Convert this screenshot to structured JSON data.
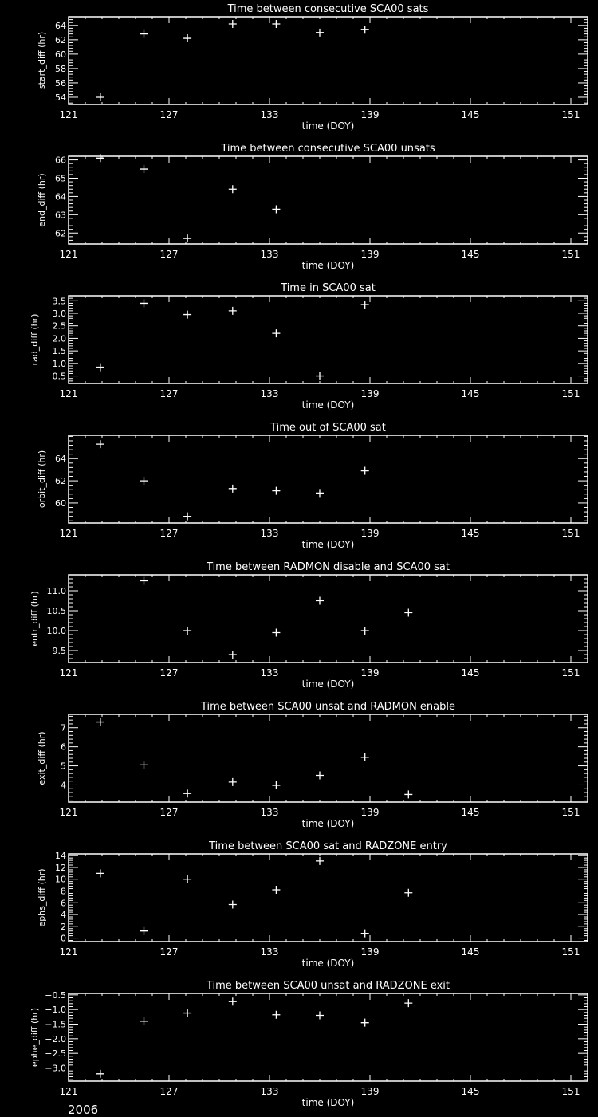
{
  "year_label": "2006",
  "colors": {
    "background": "#000000",
    "foreground": "#ffffff"
  },
  "chart_data": [
    {
      "type": "scatter",
      "title": "Time between consecutive SCA00 sats",
      "xlabel": "time (DOY)",
      "ylabel": "start_diff (hr)",
      "xlim": [
        121,
        152
      ],
      "xticks": [
        121,
        127,
        133,
        139,
        145,
        151
      ],
      "ylim": [
        53,
        65.2
      ],
      "yticks": [
        54,
        56,
        58,
        60,
        62,
        64
      ],
      "x": [
        122.9,
        125.5,
        128.1,
        130.8,
        133.4,
        136.0,
        138.7
      ],
      "y": [
        54.0,
        62.8,
        62.2,
        64.2,
        64.2,
        63.0,
        63.4
      ]
    },
    {
      "type": "scatter",
      "title": "Time between consecutive SCA00 unsats",
      "xlabel": "time (DOY)",
      "ylabel": "end_diff (hr)",
      "xlim": [
        121,
        152
      ],
      "xticks": [
        121,
        127,
        133,
        139,
        145,
        151
      ],
      "ylim": [
        61.4,
        66.2
      ],
      "yticks": [
        62,
        63,
        64,
        65,
        66
      ],
      "x": [
        122.9,
        125.5,
        128.1,
        130.8,
        133.4
      ],
      "y": [
        66.1,
        65.5,
        61.7,
        64.4,
        63.3
      ]
    },
    {
      "type": "scatter",
      "title": "Time in SCA00 sat",
      "xlabel": "time (DOY)",
      "ylabel": "rad_diff (hr)",
      "xlim": [
        121,
        152
      ],
      "xticks": [
        121,
        127,
        133,
        139,
        145,
        151
      ],
      "ylim": [
        0.2,
        3.7
      ],
      "yticks": [
        0.5,
        1.0,
        1.5,
        2.0,
        2.5,
        3.0,
        3.5
      ],
      "x": [
        122.9,
        125.5,
        128.1,
        130.8,
        133.4,
        136.0,
        138.7
      ],
      "y": [
        0.85,
        3.4,
        2.95,
        3.1,
        2.2,
        0.5,
        3.35
      ]
    },
    {
      "type": "scatter",
      "title": "Time out of SCA00 sat",
      "xlabel": "time (DOY)",
      "ylabel": "orbit_diff (hr)",
      "xlim": [
        121,
        152
      ],
      "xticks": [
        121,
        127,
        133,
        139,
        145,
        151
      ],
      "ylim": [
        58.2,
        66.1
      ],
      "yticks": [
        60,
        62,
        64
      ],
      "x": [
        122.9,
        125.5,
        128.1,
        130.8,
        133.4,
        136.0,
        138.7
      ],
      "y": [
        65.3,
        62.0,
        58.8,
        61.3,
        61.1,
        60.9,
        62.9
      ]
    },
    {
      "type": "scatter",
      "title": "Time between RADMON disable and SCA00 sat",
      "xlabel": "time (DOY)",
      "ylabel": "entr_diff (hr)",
      "xlim": [
        121,
        152
      ],
      "xticks": [
        121,
        127,
        133,
        139,
        145,
        151
      ],
      "ylim": [
        9.2,
        11.4
      ],
      "yticks": [
        9.5,
        10.0,
        10.5,
        11.0
      ],
      "x": [
        125.5,
        128.1,
        130.8,
        133.4,
        136.0,
        138.7,
        141.3
      ],
      "y": [
        11.25,
        10.0,
        9.4,
        9.95,
        10.75,
        10.0,
        10.45
      ]
    },
    {
      "type": "scatter",
      "title": "Time between SCA00 unsat and RADMON enable",
      "xlabel": "time (DOY)",
      "ylabel": "exit_diff (hr)",
      "xlim": [
        121,
        152
      ],
      "xticks": [
        121,
        127,
        133,
        139,
        145,
        151
      ],
      "ylim": [
        3.1,
        7.7
      ],
      "yticks": [
        4,
        5,
        6,
        7
      ],
      "x": [
        122.9,
        125.5,
        128.1,
        130.8,
        133.4,
        136.0,
        138.7,
        141.3
      ],
      "y": [
        7.3,
        5.05,
        3.55,
        4.15,
        3.98,
        4.5,
        5.45,
        3.5
      ]
    },
    {
      "type": "scatter",
      "title": "Time between SCA00 sat and RADZONE entry",
      "xlabel": "time (DOY)",
      "ylabel": "ephs_diff (hr)",
      "xlim": [
        121,
        152
      ],
      "xticks": [
        121,
        127,
        133,
        139,
        145,
        151
      ],
      "ylim": [
        -0.6,
        14.3
      ],
      "yticks": [
        0,
        2,
        4,
        6,
        8,
        10,
        12,
        14
      ],
      "x": [
        122.9,
        125.5,
        128.1,
        130.8,
        133.4,
        136.0,
        138.7,
        141.3
      ],
      "y": [
        11.0,
        1.2,
        10.0,
        5.7,
        8.2,
        13.1,
        0.8,
        7.7
      ]
    },
    {
      "type": "scatter",
      "title": "Time between SCA00 unsat and RADZONE exit",
      "xlabel": "time (DOY)",
      "ylabel": "ephe_diff (hr)",
      "xlim": [
        121,
        152
      ],
      "xticks": [
        121,
        127,
        133,
        139,
        145,
        151
      ],
      "ylim": [
        -3.45,
        -0.45
      ],
      "yticks": [
        -3.0,
        -2.5,
        -2.0,
        -1.5,
        -1.0,
        -0.5
      ],
      "x": [
        122.9,
        125.5,
        128.1,
        130.8,
        133.4,
        136.0,
        138.7,
        141.3
      ],
      "y": [
        -3.2,
        -1.4,
        -1.12,
        -0.73,
        -1.18,
        -1.2,
        -1.45,
        -0.78
      ]
    }
  ]
}
